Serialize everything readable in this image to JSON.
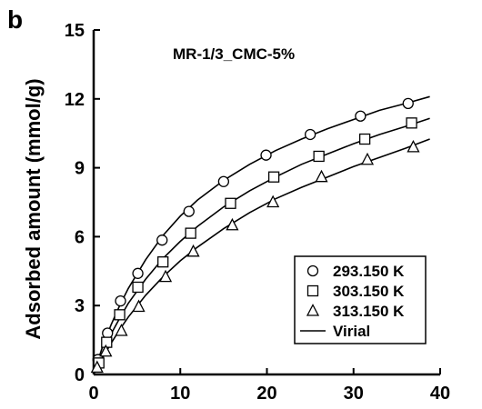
{
  "panel_label": "b",
  "chart_data": {
    "type": "scatter",
    "title": "",
    "annotation": "MR-1/3_CMC-5%",
    "xlabel": "",
    "ylabel": "Adsorbed amount (mmol/g)",
    "xlim": [
      0,
      40
    ],
    "ylim": [
      0,
      15
    ],
    "xticks": [
      0,
      10,
      20,
      30,
      40
    ],
    "yticks": [
      0,
      3,
      6,
      9,
      12,
      15
    ],
    "xtick_labels": [
      "0",
      "10",
      "20",
      "30",
      "40"
    ],
    "ytick_labels": [
      "0",
      "3",
      "6",
      "9",
      "12",
      "15"
    ],
    "grid": false,
    "legend_position": "bottom-right",
    "series": [
      {
        "name": "293.150 K",
        "marker": "circle",
        "x": [
          0.5,
          1.6,
          3.1,
          5.1,
          7.9,
          11.0,
          15.0,
          19.9,
          25.0,
          30.8,
          36.3
        ],
        "y": [
          0.65,
          1.8,
          3.2,
          4.4,
          5.85,
          7.1,
          8.4,
          9.55,
          10.45,
          11.25,
          11.8
        ],
        "fit": [
          [
            0.1,
            0.14
          ],
          [
            1,
            1.18
          ],
          [
            2,
            2.15
          ],
          [
            3,
            3.0
          ],
          [
            4,
            3.75
          ],
          [
            6,
            5.0
          ],
          [
            8,
            6.05
          ],
          [
            10,
            6.9
          ],
          [
            12,
            7.6
          ],
          [
            15,
            8.45
          ],
          [
            18,
            9.15
          ],
          [
            21,
            9.75
          ],
          [
            24,
            10.25
          ],
          [
            27,
            10.7
          ],
          [
            30,
            11.1
          ],
          [
            33,
            11.5
          ],
          [
            36,
            11.8
          ],
          [
            38.8,
            12.1
          ]
        ]
      },
      {
        "name": "303.150 K",
        "marker": "square",
        "x": [
          0.6,
          1.5,
          3.0,
          5.1,
          8.0,
          11.2,
          15.8,
          20.8,
          26.0,
          31.3,
          36.7
        ],
        "y": [
          0.5,
          1.4,
          2.6,
          3.8,
          4.9,
          6.15,
          7.45,
          8.6,
          9.5,
          10.25,
          10.95
        ],
        "fit": [
          [
            0.1,
            0.1
          ],
          [
            1,
            0.95
          ],
          [
            2,
            1.75
          ],
          [
            3,
            2.45
          ],
          [
            4,
            3.1
          ],
          [
            6,
            4.15
          ],
          [
            8,
            5.05
          ],
          [
            10,
            5.8
          ],
          [
            12,
            6.45
          ],
          [
            15,
            7.3
          ],
          [
            18,
            8.0
          ],
          [
            21,
            8.6
          ],
          [
            24,
            9.15
          ],
          [
            27,
            9.6
          ],
          [
            30,
            10.05
          ],
          [
            33,
            10.45
          ],
          [
            36,
            10.8
          ],
          [
            38.8,
            11.15
          ]
        ]
      },
      {
        "name": "313.150 K",
        "marker": "triangle",
        "x": [
          0.4,
          1.4,
          3.2,
          5.2,
          8.3,
          11.5,
          16.0,
          20.7,
          26.3,
          31.6,
          36.9
        ],
        "y": [
          0.3,
          1.0,
          1.9,
          2.95,
          4.25,
          5.35,
          6.5,
          7.5,
          8.6,
          9.35,
          9.9
        ],
        "fit": [
          [
            0.1,
            0.07
          ],
          [
            1,
            0.7
          ],
          [
            2,
            1.35
          ],
          [
            3,
            1.95
          ],
          [
            4,
            2.5
          ],
          [
            6,
            3.45
          ],
          [
            8,
            4.25
          ],
          [
            10,
            4.95
          ],
          [
            12,
            5.55
          ],
          [
            15,
            6.35
          ],
          [
            18,
            7.05
          ],
          [
            21,
            7.65
          ],
          [
            24,
            8.15
          ],
          [
            27,
            8.6
          ],
          [
            30,
            9.05
          ],
          [
            33,
            9.45
          ],
          [
            36,
            9.85
          ],
          [
            38.8,
            10.25
          ]
        ]
      }
    ],
    "legend": [
      {
        "label": "293.150 K",
        "symbol": "circle"
      },
      {
        "label": "303.150 K",
        "symbol": "square"
      },
      {
        "label": "313.150 K",
        "symbol": "triangle"
      },
      {
        "label": "Virial",
        "symbol": "line"
      }
    ]
  }
}
